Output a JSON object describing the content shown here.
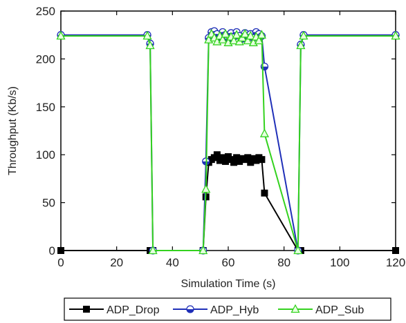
{
  "chart_data": {
    "type": "line",
    "title": "",
    "xlabel": "Simulation Time (s)",
    "ylabel": "Throughput (Kb/s)",
    "xlim": [
      0,
      120
    ],
    "ylim": [
      0,
      250
    ],
    "xticks": [
      0,
      20,
      40,
      60,
      80,
      100,
      120
    ],
    "yticks": [
      0,
      50,
      100,
      150,
      200,
      250
    ],
    "grid": false,
    "legend_position": "bottom",
    "series": [
      {
        "name": "ADP_Drop",
        "color": "#000000",
        "marker": "square-filled",
        "x": [
          0,
          32,
          33,
          51,
          52,
          53,
          54,
          55,
          56,
          57,
          58,
          59,
          60,
          61,
          62,
          63,
          64,
          65,
          66,
          67,
          68,
          69,
          70,
          71,
          72,
          73,
          85,
          86,
          120
        ],
        "y": [
          0,
          0,
          0,
          0,
          56,
          92,
          95,
          97,
          100,
          94,
          97,
          93,
          98,
          95,
          92,
          97,
          93,
          96,
          95,
          97,
          92,
          96,
          94,
          97,
          95,
          60,
          0,
          0,
          0
        ]
      },
      {
        "name": "ADP_Hyb",
        "color": "#1f2fb8",
        "marker": "circle-half",
        "x": [
          0,
          31,
          32,
          33,
          51,
          52,
          53,
          54,
          55,
          56,
          57,
          58,
          59,
          60,
          61,
          62,
          63,
          64,
          65,
          66,
          67,
          68,
          69,
          70,
          71,
          72,
          73,
          85,
          86,
          87,
          120
        ],
        "y": [
          225,
          225,
          216,
          0,
          0,
          93,
          222,
          228,
          229,
          226,
          222,
          228,
          225,
          221,
          227,
          223,
          228,
          224,
          221,
          227,
          224,
          226,
          222,
          228,
          226,
          224,
          192,
          0,
          215,
          225,
          225
        ]
      },
      {
        "name": "ADP_Sub",
        "color": "#33d21e",
        "marker": "triangle-open",
        "x": [
          0,
          31,
          32,
          33,
          51,
          52,
          53,
          54,
          55,
          56,
          57,
          58,
          59,
          60,
          61,
          62,
          63,
          64,
          65,
          66,
          67,
          68,
          69,
          70,
          71,
          72,
          73,
          85,
          86,
          87,
          120
        ],
        "y": [
          224,
          224,
          214,
          0,
          0,
          64,
          220,
          226,
          222,
          218,
          224,
          220,
          226,
          217,
          223,
          219,
          225,
          218,
          222,
          226,
          219,
          224,
          217,
          223,
          219,
          225,
          122,
          0,
          214,
          224,
          224
        ]
      }
    ]
  }
}
